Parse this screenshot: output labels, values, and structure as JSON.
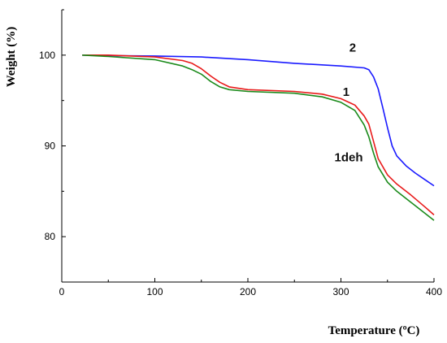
{
  "chart_data": {
    "type": "line",
    "xlabel": "Temperature (ºC)",
    "ylabel": "Weight (%)",
    "xlim": [
      0,
      400
    ],
    "ylim": [
      75,
      105
    ],
    "xticks": [
      0,
      100,
      200,
      300,
      400
    ],
    "yticks": [
      80,
      90,
      100
    ],
    "grid": false,
    "series": [
      {
        "name": "2",
        "color": "#1a1aff",
        "points": [
          [
            22,
            100.0
          ],
          [
            50,
            99.95
          ],
          [
            100,
            99.9
          ],
          [
            150,
            99.8
          ],
          [
            200,
            99.5
          ],
          [
            250,
            99.1
          ],
          [
            300,
            98.8
          ],
          [
            325,
            98.6
          ],
          [
            330,
            98.4
          ],
          [
            335,
            97.6
          ],
          [
            340,
            96.3
          ],
          [
            345,
            94.2
          ],
          [
            350,
            92.0
          ],
          [
            355,
            90.0
          ],
          [
            360,
            88.9
          ],
          [
            370,
            87.8
          ],
          [
            380,
            87.0
          ],
          [
            390,
            86.3
          ],
          [
            400,
            85.6
          ]
        ]
      },
      {
        "name": "1",
        "color": "#e81a1a",
        "points": [
          [
            22,
            100.0
          ],
          [
            50,
            100.0
          ],
          [
            100,
            99.8
          ],
          [
            130,
            99.4
          ],
          [
            140,
            99.1
          ],
          [
            150,
            98.5
          ],
          [
            160,
            97.7
          ],
          [
            170,
            97.0
          ],
          [
            180,
            96.5
          ],
          [
            200,
            96.2
          ],
          [
            250,
            96.0
          ],
          [
            280,
            95.7
          ],
          [
            300,
            95.2
          ],
          [
            315,
            94.5
          ],
          [
            325,
            93.3
          ],
          [
            330,
            92.4
          ],
          [
            335,
            90.5
          ],
          [
            340,
            88.6
          ],
          [
            350,
            86.8
          ],
          [
            360,
            85.8
          ],
          [
            375,
            84.6
          ],
          [
            390,
            83.3
          ],
          [
            400,
            82.4
          ]
        ]
      },
      {
        "name": "1deh",
        "color": "#1a8a1a",
        "points": [
          [
            22,
            100.0
          ],
          [
            50,
            99.85
          ],
          [
            100,
            99.5
          ],
          [
            130,
            98.8
          ],
          [
            140,
            98.4
          ],
          [
            150,
            97.9
          ],
          [
            160,
            97.1
          ],
          [
            170,
            96.5
          ],
          [
            180,
            96.2
          ],
          [
            200,
            96.0
          ],
          [
            250,
            95.8
          ],
          [
            280,
            95.4
          ],
          [
            300,
            94.8
          ],
          [
            315,
            93.9
          ],
          [
            325,
            92.3
          ],
          [
            330,
            91.0
          ],
          [
            335,
            89.2
          ],
          [
            340,
            87.7
          ],
          [
            350,
            86.0
          ],
          [
            360,
            85.0
          ],
          [
            375,
            83.8
          ],
          [
            390,
            82.6
          ],
          [
            400,
            81.8
          ]
        ]
      }
    ],
    "annotations": [
      {
        "text": "2",
        "series": "2",
        "x": 309,
        "y": 100.4
      },
      {
        "text": "1",
        "series": "1",
        "x": 302,
        "y": 95.5
      },
      {
        "text": "1deh",
        "series": "1deh",
        "x": 293,
        "y": 88.3
      }
    ]
  }
}
